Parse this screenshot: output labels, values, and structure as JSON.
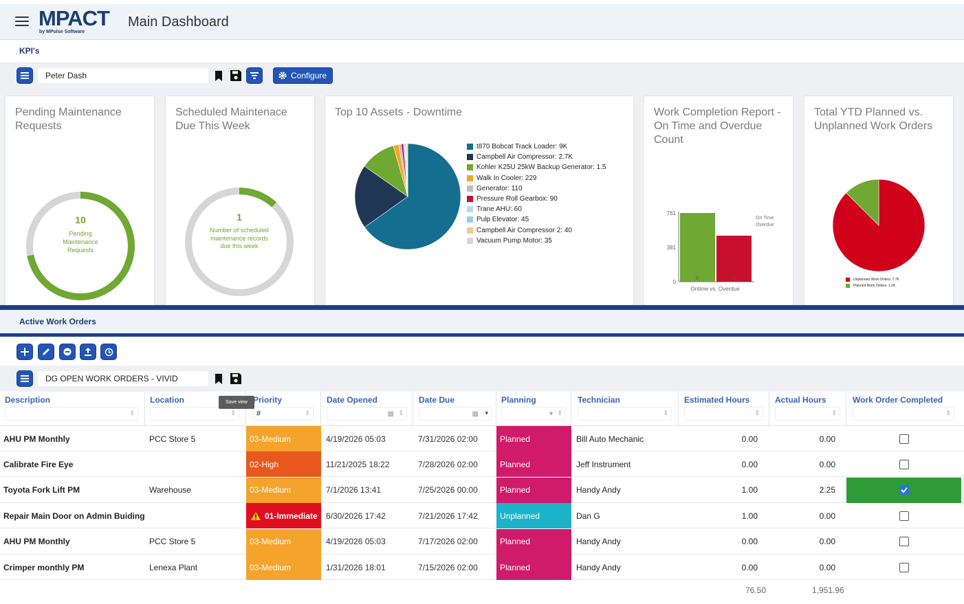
{
  "app": {
    "logo_text": "MPACT",
    "logo_sub": "by MPulse Software",
    "page_title": "Main Dashboard"
  },
  "kpi_section": {
    "label": "KPI's",
    "view_name": "Peter Dash",
    "configure_label": "Configure"
  },
  "cards": {
    "pending": {
      "title": "Pending Maintenance Requests",
      "value": "10",
      "caption": "Pending Maintenance Requests",
      "progress": 0.72
    },
    "scheduled": {
      "title": "Scheduled Maintenace Due This Week",
      "value": "1",
      "caption": "Number of scheduled maintenance records due this week",
      "progress": 0.12
    },
    "top10": {
      "title": "Top 10 Assets - Downtime"
    },
    "completion": {
      "title": "Work Completion Report - On Time and Overdue Count"
    },
    "ytd": {
      "title": "Total YTD Planned vs. Unplanned Work Orders"
    }
  },
  "chart_data": [
    {
      "type": "pie",
      "title": "Top 10 Assets - Downtime",
      "slices": [
        {
          "label": "t870 Bobcat Track Loader: 9K",
          "value": 9000,
          "color": "#146e8f"
        },
        {
          "label": "Campbell Air Compressor: 2.7K",
          "value": 2700,
          "color": "#1f3654"
        },
        {
          "label": "Kohler K25U 25kW Backup Generator: 1.5",
          "value": 1500,
          "color": "#6fa832"
        },
        {
          "label": "Walk In Cooler: 229",
          "value": 229,
          "color": "#f5a623"
        },
        {
          "label": "Generator: 110",
          "value": 110,
          "color": "#bdbdbd"
        },
        {
          "label": "Pressure Roll Gearbox: 90",
          "value": 90,
          "color": "#c8102e"
        },
        {
          "label": "Trane AHU: 60",
          "value": 60,
          "color": "#b6dcee"
        },
        {
          "label": "Pulp Elevator: 45",
          "value": 45,
          "color": "#9ccbe8"
        },
        {
          "label": "Campbell Air Compressor 2: 40",
          "value": 40,
          "color": "#f8c98a"
        },
        {
          "label": "Vacuum Pump Motor: 35",
          "value": 35,
          "color": "#d6d6d6"
        }
      ]
    },
    {
      "type": "bar",
      "title": "Work Completion Report - On Time and Overdue Count",
      "xlabel": "Ontime vs. Overdue",
      "yticks": [
        "761",
        "381",
        "0"
      ],
      "ylim": [
        0,
        761
      ],
      "series": [
        {
          "name": "On Time",
          "value": 761,
          "color": "#6fa832",
          "label": "0"
        },
        {
          "name": "Overdue",
          "value": 510,
          "color": "#c8102e",
          "label": "0"
        }
      ],
      "legend": [
        "On Time",
        "Overdue"
      ]
    },
    {
      "type": "pie",
      "title": "Total YTD Planned vs. Unplanned Work Orders",
      "slices": [
        {
          "label": "Unplanned Work Orders: 7.7K",
          "value": 7700,
          "color": "#d0021b"
        },
        {
          "label": "Planned Work Orders: 1.1K",
          "value": 1100,
          "color": "#6fa832"
        }
      ]
    }
  ],
  "work_orders": {
    "section_label": "Active Work Orders",
    "view_name": "DG OPEN WORK ORDERS - VIVID",
    "tooltip": "Save view",
    "columns": [
      {
        "key": "description",
        "label": "Description"
      },
      {
        "key": "location",
        "label": "Location"
      },
      {
        "key": "priority",
        "label": "Priority",
        "filter_value": "#"
      },
      {
        "key": "date_opened",
        "label": "Date Opened"
      },
      {
        "key": "date_due",
        "label": "Date Due"
      },
      {
        "key": "planning",
        "label": "Planning"
      },
      {
        "key": "technician",
        "label": "Technician"
      },
      {
        "key": "est_hours",
        "label": "Estimated Hours"
      },
      {
        "key": "act_hours",
        "label": "Actual Hours"
      },
      {
        "key": "completed",
        "label": "Work Order Completed"
      }
    ],
    "rows": [
      {
        "description": "AHU PM Monthly",
        "location": "PCC Store 5",
        "priority": "03-Medium",
        "priority_color": "#f4a32b",
        "date_opened": "4/19/2026 05:03",
        "date_due": "7/31/2026 02:00",
        "planning": "Planned",
        "planning_color": "#d01a6a",
        "technician": "Bill Auto Mechanic",
        "est_hours": "0.00",
        "act_hours": "0.00",
        "completed": false
      },
      {
        "description": "Calibrate Fire Eye",
        "location": "",
        "priority": "02-High",
        "priority_color": "#e8571b",
        "date_opened": "11/21/2025 18:22",
        "date_due": "7/28/2026 02:00",
        "planning": "Planned",
        "planning_color": "#d01a6a",
        "technician": "Jeff Instrument",
        "est_hours": "0.00",
        "act_hours": "0.00",
        "completed": false
      },
      {
        "description": "Toyota Fork Lift PM",
        "location": "Warehouse",
        "priority": "03-Medium",
        "priority_color": "#f4a32b",
        "date_opened": "7/1/2026 13:41",
        "date_due": "7/25/2026 00:00",
        "planning": "Planned",
        "planning_color": "#d01a6a",
        "technician": "Handy Andy",
        "est_hours": "1.00",
        "act_hours": "2.25",
        "completed": true
      },
      {
        "description": "Repair Main Door on Admin Buiding",
        "location": "",
        "priority": "01-Immediate",
        "priority_color": "#e00f1f",
        "priority_warning": true,
        "date_opened": "6/30/2026 17:42",
        "date_due": "7/21/2026 17:42",
        "planning": "Unplanned",
        "planning_color": "#1cb3c8",
        "technician": "Dan G",
        "est_hours": "1.00",
        "act_hours": "0.00",
        "completed": false
      },
      {
        "description": "AHU PM Monthly",
        "location": "PCC Store 5",
        "priority": "03-Medium",
        "priority_color": "#f4a32b",
        "date_opened": "4/19/2026 05:03",
        "date_due": "7/17/2026 02:00",
        "planning": "Planned",
        "planning_color": "#d01a6a",
        "technician": "Handy Andy",
        "est_hours": "0.00",
        "act_hours": "0.00",
        "completed": false
      },
      {
        "description": "Crimper monthly PM",
        "location": "Lenexa Plant",
        "priority": "03-Medium",
        "priority_color": "#f4a32b",
        "date_opened": "1/31/2026 18:01",
        "date_due": "7/15/2026 02:00",
        "planning": "Planned",
        "planning_color": "#d01a6a",
        "technician": "Handy Andy",
        "est_hours": "0.00",
        "act_hours": "0.00",
        "completed": false
      }
    ],
    "totals": {
      "est_hours": "76.50",
      "act_hours": "1,951.96"
    },
    "colors": {
      "completed_bg": "#2f9b36",
      "header_text": "#3863b3"
    }
  }
}
